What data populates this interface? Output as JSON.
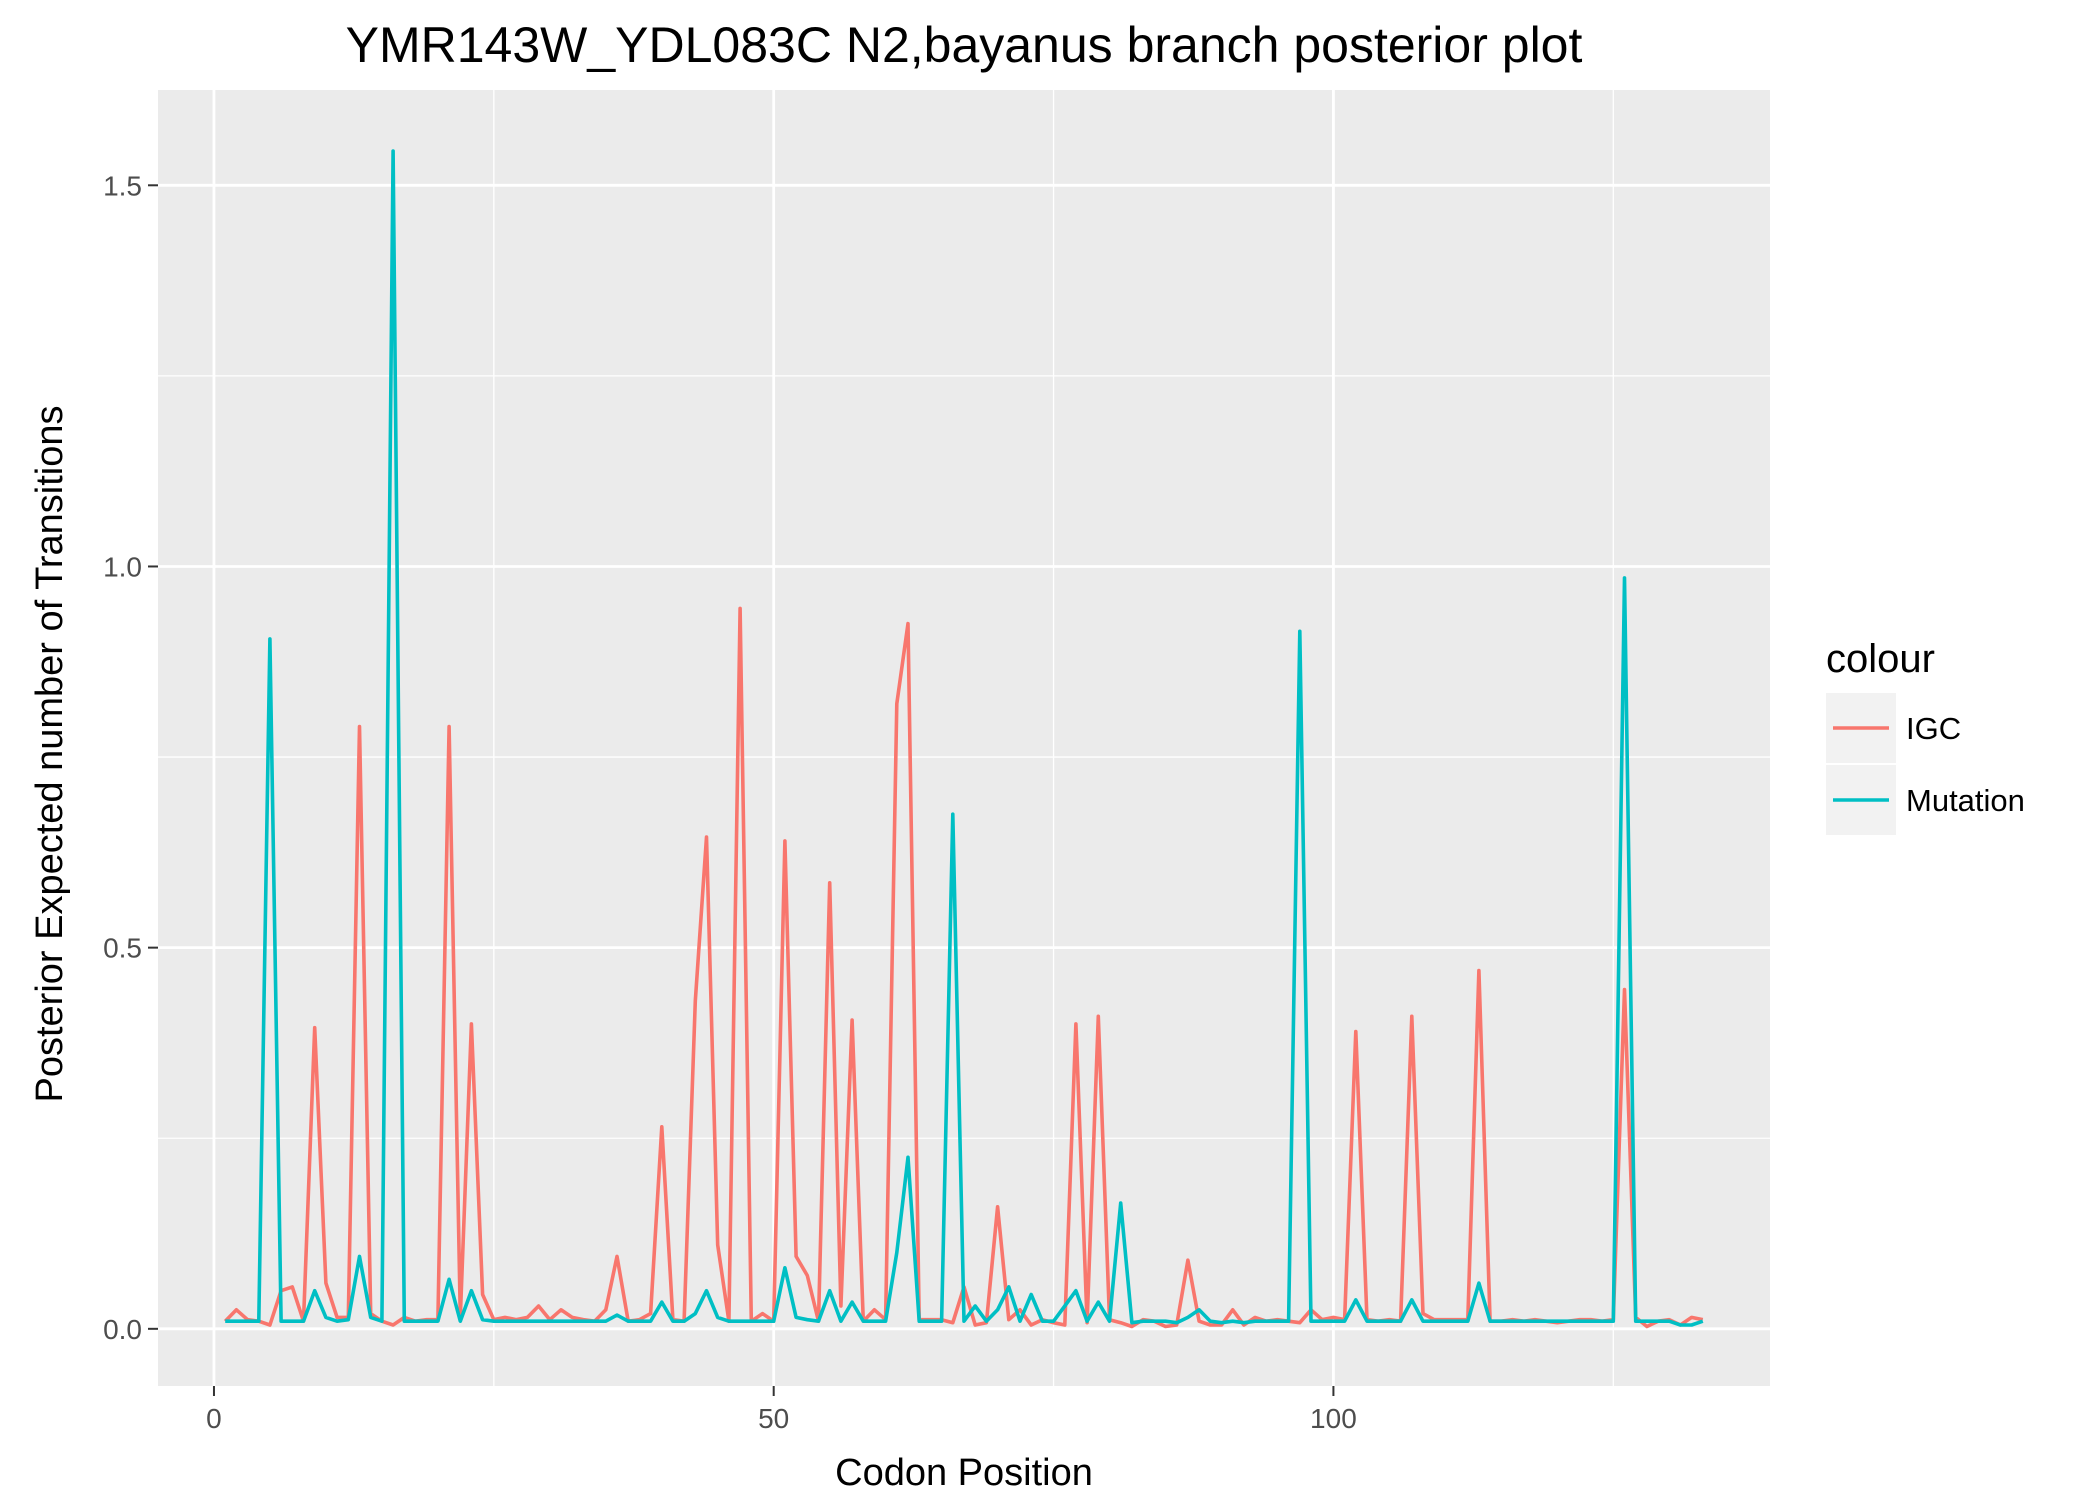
{
  "chart_data": {
    "type": "line",
    "title": "YMR143W_YDL083C N2,bayanus branch posterior plot",
    "xlabel": "Codon Position",
    "ylabel": "Posterior Expected number of Transitions",
    "xlim": [
      -5,
      139
    ],
    "ylim": [
      -0.075,
      1.625
    ],
    "xticks": [
      0,
      50,
      100
    ],
    "xtick_labels": [
      "0",
      "50",
      "100"
    ],
    "yticks": [
      0.0,
      0.5,
      1.0,
      1.5
    ],
    "ytick_labels": [
      "0.0",
      "0.5",
      "1.0",
      "1.5"
    ],
    "grid": true,
    "legend": {
      "title": "colour",
      "position": "right"
    },
    "colors": {
      "IGC": "#F8766D",
      "Mutation": "#00BFC4",
      "panel": "#EBEBEB",
      "grid": "#FFFFFF"
    },
    "x": [
      1,
      2,
      3,
      4,
      5,
      6,
      7,
      8,
      9,
      10,
      11,
      12,
      13,
      14,
      15,
      16,
      17,
      18,
      19,
      20,
      21,
      22,
      23,
      24,
      25,
      26,
      27,
      28,
      29,
      30,
      31,
      32,
      33,
      34,
      35,
      36,
      37,
      38,
      39,
      40,
      41,
      42,
      43,
      44,
      45,
      46,
      47,
      48,
      49,
      50,
      51,
      52,
      53,
      54,
      55,
      56,
      57,
      58,
      59,
      60,
      61,
      62,
      63,
      64,
      65,
      66,
      67,
      68,
      69,
      70,
      71,
      72,
      73,
      74,
      75,
      76,
      77,
      78,
      79,
      80,
      81,
      82,
      83,
      84,
      85,
      86,
      87,
      88,
      89,
      90,
      91,
      92,
      93,
      94,
      95,
      96,
      97,
      98,
      99,
      100,
      101,
      102,
      103,
      104,
      105,
      106,
      107,
      108,
      109,
      110,
      111,
      112,
      113,
      114,
      115,
      116,
      117,
      118,
      119,
      120,
      121,
      122,
      123,
      124,
      125,
      126,
      127,
      128,
      129,
      130,
      131,
      132,
      133
    ],
    "series": [
      {
        "name": "IGC",
        "values": [
          0.01,
          0.025,
          0.012,
          0.01,
          0.005,
          0.05,
          0.055,
          0.01,
          0.395,
          0.06,
          0.015,
          0.015,
          0.79,
          0.02,
          0.01,
          0.005,
          0.015,
          0.01,
          0.012,
          0.012,
          0.79,
          0.015,
          0.4,
          0.045,
          0.012,
          0.015,
          0.012,
          0.015,
          0.03,
          0.012,
          0.025,
          0.015,
          0.012,
          0.01,
          0.025,
          0.095,
          0.01,
          0.012,
          0.02,
          0.265,
          0.012,
          0.01,
          0.43,
          0.645,
          0.11,
          0.01,
          0.945,
          0.01,
          0.02,
          0.01,
          0.64,
          0.095,
          0.07,
          0.01,
          0.585,
          0.03,
          0.405,
          0.01,
          0.025,
          0.012,
          0.82,
          0.925,
          0.012,
          0.012,
          0.012,
          0.008,
          0.055,
          0.005,
          0.008,
          0.16,
          0.012,
          0.025,
          0.005,
          0.012,
          0.008,
          0.005,
          0.4,
          0.008,
          0.41,
          0.012,
          0.008,
          0.003,
          0.012,
          0.01,
          0.003,
          0.005,
          0.09,
          0.01,
          0.005,
          0.005,
          0.025,
          0.005,
          0.015,
          0.01,
          0.012,
          0.01,
          0.008,
          0.025,
          0.012,
          0.015,
          0.012,
          0.39,
          0.012,
          0.01,
          0.012,
          0.01,
          0.41,
          0.02,
          0.012,
          0.012,
          0.012,
          0.012,
          0.47,
          0.01,
          0.01,
          0.012,
          0.01,
          0.012,
          0.01,
          0.008,
          0.01,
          0.012,
          0.012,
          0.01,
          0.012,
          0.445,
          0.015,
          0.003,
          0.01,
          0.012,
          0.005,
          0.015,
          0.012
        ]
      },
      {
        "name": "Mutation",
        "values": [
          0.01,
          0.01,
          0.01,
          0.01,
          0.905,
          0.01,
          0.01,
          0.01,
          0.05,
          0.015,
          0.01,
          0.012,
          0.095,
          0.015,
          0.01,
          1.545,
          0.01,
          0.01,
          0.01,
          0.01,
          0.065,
          0.01,
          0.05,
          0.012,
          0.01,
          0.01,
          0.01,
          0.01,
          0.01,
          0.01,
          0.01,
          0.01,
          0.01,
          0.01,
          0.01,
          0.018,
          0.01,
          0.01,
          0.01,
          0.035,
          0.01,
          0.01,
          0.02,
          0.05,
          0.015,
          0.01,
          0.01,
          0.01,
          0.01,
          0.01,
          0.08,
          0.015,
          0.012,
          0.01,
          0.05,
          0.01,
          0.035,
          0.01,
          0.01,
          0.01,
          0.1,
          0.225,
          0.01,
          0.01,
          0.01,
          0.675,
          0.01,
          0.03,
          0.01,
          0.025,
          0.055,
          0.01,
          0.045,
          0.01,
          0.01,
          0.03,
          0.05,
          0.01,
          0.035,
          0.01,
          0.165,
          0.008,
          0.01,
          0.01,
          0.01,
          0.008,
          0.015,
          0.025,
          0.01,
          0.008,
          0.01,
          0.008,
          0.01,
          0.01,
          0.01,
          0.01,
          0.915,
          0.01,
          0.01,
          0.01,
          0.01,
          0.038,
          0.01,
          0.01,
          0.01,
          0.01,
          0.038,
          0.01,
          0.01,
          0.01,
          0.01,
          0.01,
          0.06,
          0.01,
          0.01,
          0.01,
          0.01,
          0.01,
          0.01,
          0.01,
          0.01,
          0.01,
          0.01,
          0.01,
          0.01,
          0.985,
          0.01,
          0.01,
          0.01,
          0.01,
          0.005,
          0.005,
          0.01
        ]
      }
    ]
  }
}
